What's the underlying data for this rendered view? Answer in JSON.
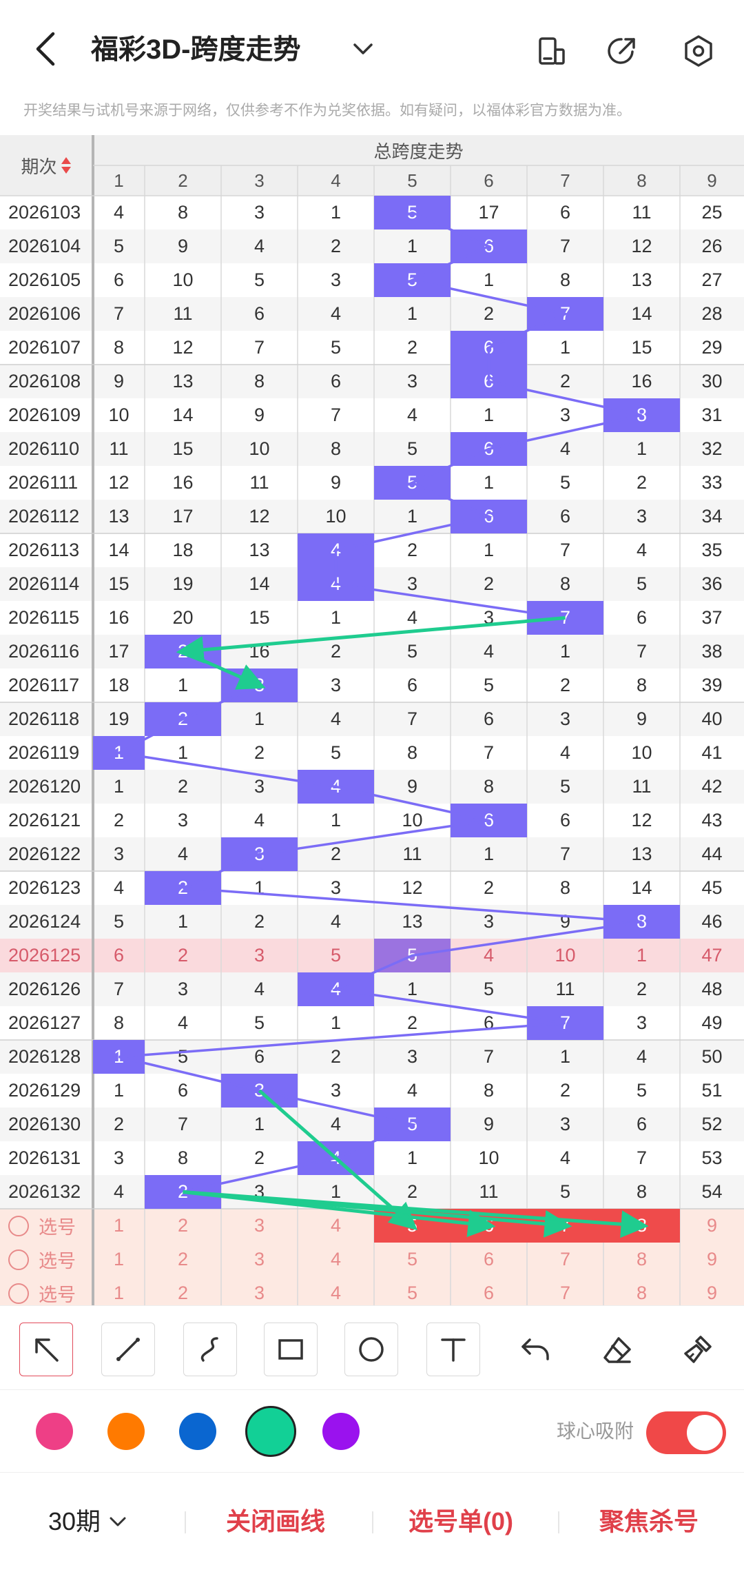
{
  "header": {
    "title": "福彩3D-跨度走势",
    "disclaimer": "开奖结果与试机号来源于网络，仅供参考不作为兑奖依据。如有疑问，以福体彩官方数据为准。"
  },
  "table": {
    "period_header": "期次",
    "group_header": "总跨度走势",
    "columns": [
      "1",
      "2",
      "3",
      "4",
      "5",
      "6",
      "7",
      "8",
      "9"
    ],
    "highlight_period": "2026125",
    "rows": [
      {
        "period": "2026103",
        "values": [
          "4",
          "8",
          "3",
          "1",
          "5",
          "17",
          "6",
          "11",
          "25"
        ],
        "ball": 5
      },
      {
        "period": "2026104",
        "values": [
          "5",
          "9",
          "4",
          "2",
          "1",
          "6",
          "7",
          "12",
          "26"
        ],
        "ball": 6
      },
      {
        "period": "2026105",
        "values": [
          "6",
          "10",
          "5",
          "3",
          "5",
          "1",
          "8",
          "13",
          "27"
        ],
        "ball": 5
      },
      {
        "period": "2026106",
        "values": [
          "7",
          "11",
          "6",
          "4",
          "1",
          "2",
          "7",
          "14",
          "28"
        ],
        "ball": 7
      },
      {
        "period": "2026107",
        "values": [
          "8",
          "12",
          "7",
          "5",
          "2",
          "6",
          "1",
          "15",
          "29"
        ],
        "ball": 6
      },
      {
        "period": "2026108",
        "values": [
          "9",
          "13",
          "8",
          "6",
          "3",
          "6",
          "2",
          "16",
          "30"
        ],
        "ball": 6
      },
      {
        "period": "2026109",
        "values": [
          "10",
          "14",
          "9",
          "7",
          "4",
          "1",
          "3",
          "8",
          "31"
        ],
        "ball": 8
      },
      {
        "period": "2026110",
        "values": [
          "11",
          "15",
          "10",
          "8",
          "5",
          "6",
          "4",
          "1",
          "32"
        ],
        "ball": 6
      },
      {
        "period": "2026111",
        "values": [
          "12",
          "16",
          "11",
          "9",
          "5",
          "1",
          "5",
          "2",
          "33"
        ],
        "ball": 5
      },
      {
        "period": "2026112",
        "values": [
          "13",
          "17",
          "12",
          "10",
          "1",
          "6",
          "6",
          "3",
          "34"
        ],
        "ball": 6
      },
      {
        "period": "2026113",
        "values": [
          "14",
          "18",
          "13",
          "4",
          "2",
          "1",
          "7",
          "4",
          "35"
        ],
        "ball": 4
      },
      {
        "period": "2026114",
        "values": [
          "15",
          "19",
          "14",
          "4",
          "3",
          "2",
          "8",
          "5",
          "36"
        ],
        "ball": 4
      },
      {
        "period": "2026115",
        "values": [
          "16",
          "20",
          "15",
          "1",
          "4",
          "3",
          "7",
          "6",
          "37"
        ],
        "ball": 7
      },
      {
        "period": "2026116",
        "values": [
          "17",
          "2",
          "16",
          "2",
          "5",
          "4",
          "1",
          "7",
          "38"
        ],
        "ball": 2
      },
      {
        "period": "2026117",
        "values": [
          "18",
          "1",
          "3",
          "3",
          "6",
          "5",
          "2",
          "8",
          "39"
        ],
        "ball": 3
      },
      {
        "period": "2026118",
        "values": [
          "19",
          "2",
          "1",
          "4",
          "7",
          "6",
          "3",
          "9",
          "40"
        ],
        "ball": 2
      },
      {
        "period": "2026119",
        "values": [
          "1",
          "1",
          "2",
          "5",
          "8",
          "7",
          "4",
          "10",
          "41"
        ],
        "ball": 1
      },
      {
        "period": "2026120",
        "values": [
          "1",
          "2",
          "3",
          "4",
          "9",
          "8",
          "5",
          "11",
          "42"
        ],
        "ball": 4
      },
      {
        "period": "2026121",
        "values": [
          "2",
          "3",
          "4",
          "1",
          "10",
          "6",
          "6",
          "12",
          "43"
        ],
        "ball": 6
      },
      {
        "period": "2026122",
        "values": [
          "3",
          "4",
          "3",
          "2",
          "11",
          "1",
          "7",
          "13",
          "44"
        ],
        "ball": 3
      },
      {
        "period": "2026123",
        "values": [
          "4",
          "2",
          "1",
          "3",
          "12",
          "2",
          "8",
          "14",
          "45"
        ],
        "ball": 2
      },
      {
        "period": "2026124",
        "values": [
          "5",
          "1",
          "2",
          "4",
          "13",
          "3",
          "9",
          "8",
          "46"
        ],
        "ball": 8
      },
      {
        "period": "2026125",
        "values": [
          "6",
          "2",
          "3",
          "5",
          "5",
          "4",
          "10",
          "1",
          "47"
        ],
        "ball": 5
      },
      {
        "period": "2026126",
        "values": [
          "7",
          "3",
          "4",
          "4",
          "1",
          "5",
          "11",
          "2",
          "48"
        ],
        "ball": 4
      },
      {
        "period": "2026127",
        "values": [
          "8",
          "4",
          "5",
          "1",
          "2",
          "6",
          "7",
          "3",
          "49"
        ],
        "ball": 7
      },
      {
        "period": "2026128",
        "values": [
          "1",
          "5",
          "6",
          "2",
          "3",
          "7",
          "1",
          "4",
          "50"
        ],
        "ball": 1
      },
      {
        "period": "2026129",
        "values": [
          "1",
          "6",
          "3",
          "3",
          "4",
          "8",
          "2",
          "5",
          "51"
        ],
        "ball": 3
      },
      {
        "period": "2026130",
        "values": [
          "2",
          "7",
          "1",
          "4",
          "5",
          "9",
          "3",
          "6",
          "52"
        ],
        "ball": 5
      },
      {
        "period": "2026131",
        "values": [
          "3",
          "8",
          "2",
          "4",
          "1",
          "10",
          "4",
          "7",
          "53"
        ],
        "ball": 4
      },
      {
        "period": "2026132",
        "values": [
          "4",
          "2",
          "3",
          "1",
          "2",
          "11",
          "5",
          "8",
          "54"
        ],
        "ball": 2
      }
    ],
    "pick_rows": [
      {
        "label": "选号",
        "values": [
          "1",
          "2",
          "3",
          "4",
          "5",
          "6",
          "7",
          "8",
          "9"
        ],
        "selected": [
          5,
          6,
          7,
          8
        ]
      },
      {
        "label": "选号",
        "values": [
          "1",
          "2",
          "3",
          "4",
          "5",
          "6",
          "7",
          "8",
          "9"
        ],
        "selected": []
      },
      {
        "label": "选号",
        "values": [
          "1",
          "2",
          "3",
          "4",
          "5",
          "6",
          "7",
          "8",
          "9"
        ],
        "selected": []
      }
    ]
  },
  "toolbar": {
    "tools": [
      "arrow-tool-icon",
      "line-tool-icon",
      "curve-tool-icon",
      "rect-tool-icon",
      "circle-tool-icon",
      "text-tool-icon",
      "undo-icon",
      "eraser-icon",
      "clear-brush-icon"
    ]
  },
  "colors": {
    "swatches": [
      "#ee3f86",
      "#ff7a00",
      "#0a66d0",
      "#12d096",
      "#9a12ee"
    ],
    "selected": "#12d096",
    "magnet_label": "球心吸附"
  },
  "bottom": {
    "period_select": "30期",
    "close_draw": "关闭画线",
    "pick_list": "选号单(0)",
    "focus_kill": "聚焦杀号"
  }
}
